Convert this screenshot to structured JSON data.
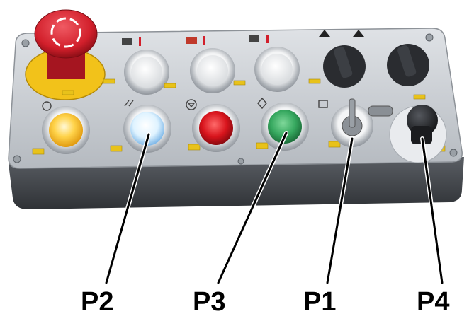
{
  "photo": {
    "description_hidden": false,
    "colors": {
      "panel_face": "#c9cdd2",
      "panel_bottom": "#4a4d52",
      "estop_red": "#d21f2b",
      "estop_collar": "#f2c21a",
      "lamp_yellow": "#ffd34a",
      "lamp_white_blue": "#dff3ff",
      "lamp_red": "#d8141c",
      "lamp_green": "#36a85f",
      "knob_black": "#1e1f22"
    },
    "callouts": [
      {
        "id": "p2",
        "label": "P2"
      },
      {
        "id": "p3",
        "label": "P3"
      },
      {
        "id": "p1",
        "label": "P1"
      },
      {
        "id": "p4",
        "label": "P4"
      }
    ]
  }
}
